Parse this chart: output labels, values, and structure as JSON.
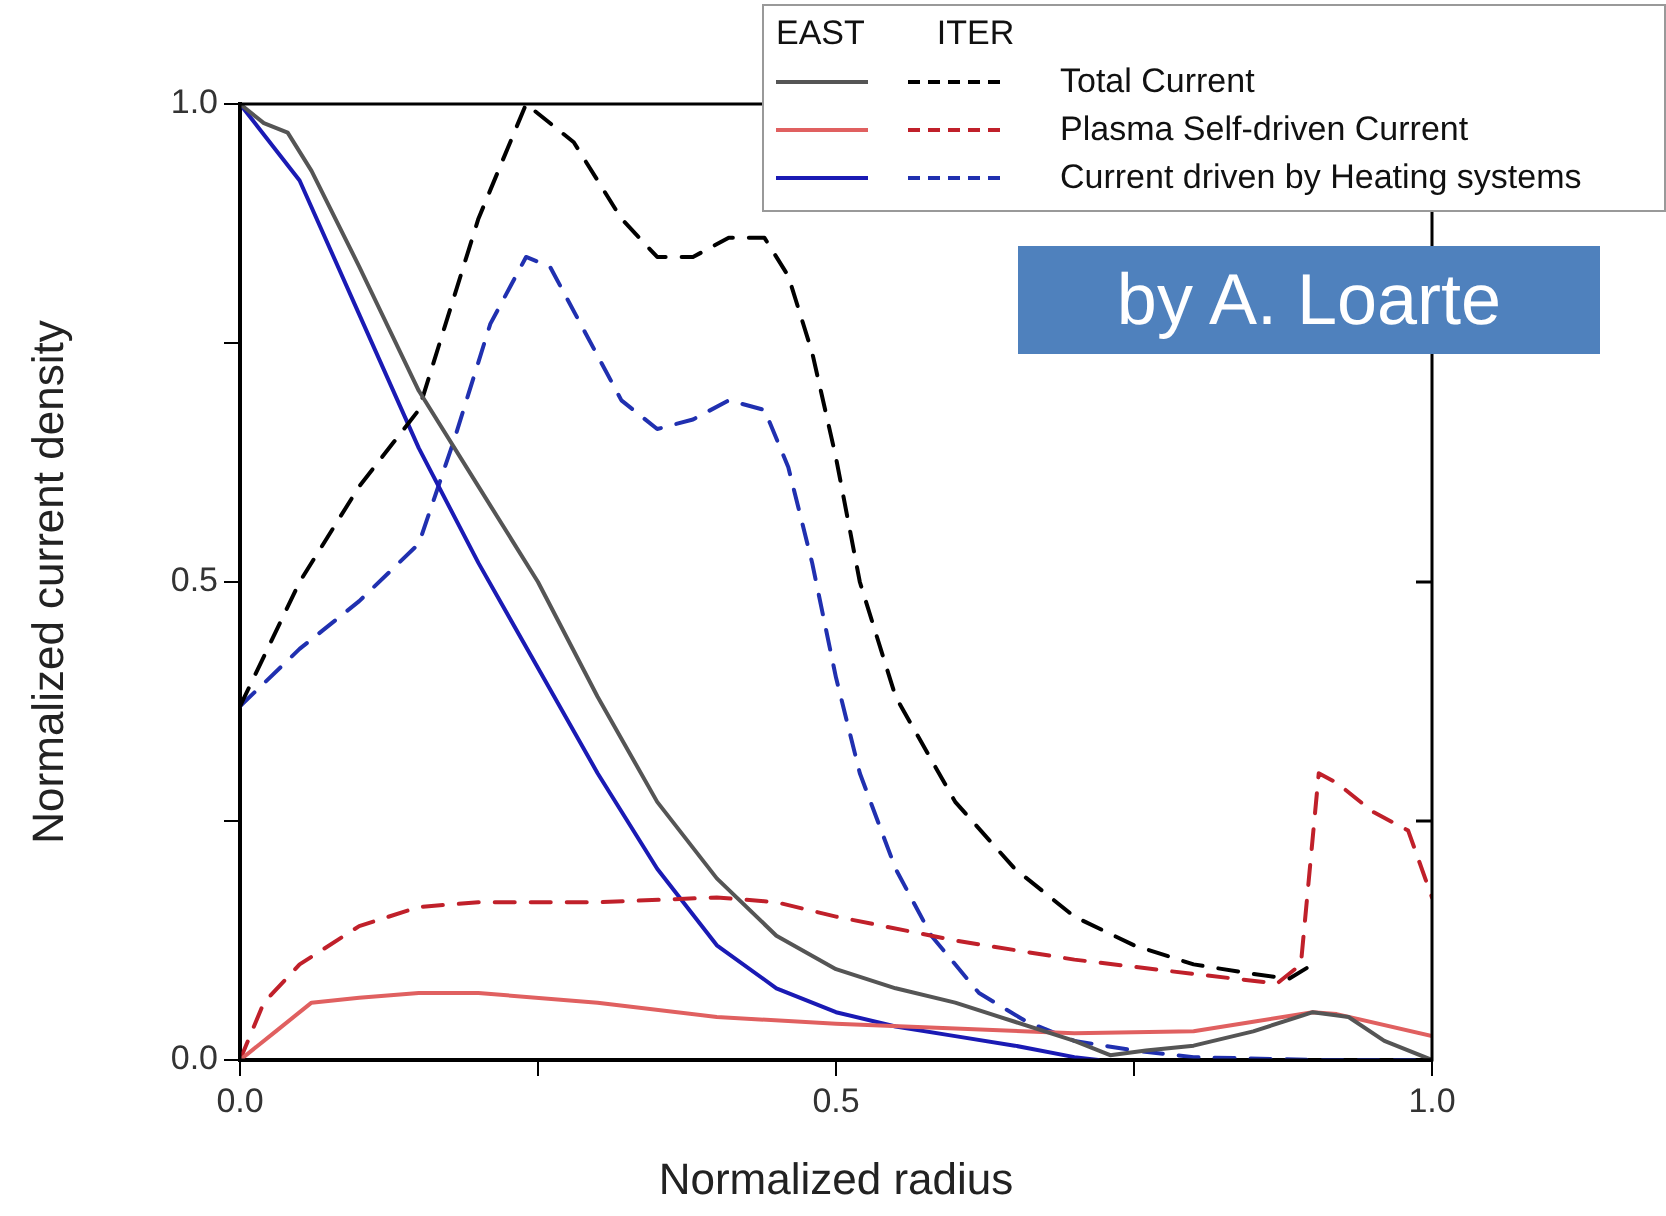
{
  "chart_data": {
    "type": "line",
    "xlabel": "Normalized radius",
    "ylabel": "Normalized current density",
    "annotations": [
      "EAST",
      "ITER",
      "by A. Loarte"
    ],
    "xlim": [
      0,
      1
    ],
    "xticks": [
      {
        "value": 0,
        "label": "0.0"
      },
      {
        "value": 0.25,
        "label": null
      },
      {
        "value": 0.5,
        "label": "0.5"
      },
      {
        "value": 0.75,
        "label": null
      },
      {
        "value": 1,
        "label": "1.0"
      }
    ],
    "ylim": [
      0,
      1
    ],
    "yticks": [
      {
        "value": 0,
        "label": "0.0"
      },
      {
        "value": 0.25,
        "label": null
      },
      {
        "value": 0.5,
        "label": "0.5"
      },
      {
        "value": 0.75,
        "label": null
      },
      {
        "value": 1,
        "label": "1.0"
      }
    ],
    "grid": false,
    "legend": "top right",
    "marker": "none",
    "series": [
      {
        "color": "#555555",
        "line_style": "solid",
        "x": [
          0,
          0.02,
          0.04,
          0.06,
          0.1,
          0.15,
          0.2,
          0.25,
          0.3,
          0.35,
          0.4,
          0.45,
          0.5,
          0.55,
          0.6,
          0.65,
          0.7,
          0.73,
          0.76,
          0.8,
          0.85,
          0.9,
          0.93,
          0.96,
          1
        ],
        "values": [
          1,
          0.98,
          0.97,
          0.93,
          0.83,
          0.7,
          0.6,
          0.5,
          0.38,
          0.27,
          0.19,
          0.13,
          0.095,
          0.075,
          0.06,
          0.04,
          0.02,
          0.005,
          0.01,
          0.015,
          0.03,
          0.05,
          0.045,
          0.02,
          0
        ]
      },
      {
        "name": "Total Current",
        "color": "#000000",
        "line_style": "dashed",
        "x": [
          0,
          0.05,
          0.1,
          0.15,
          0.2,
          0.24,
          0.28,
          0.32,
          0.35,
          0.38,
          0.41,
          0.44,
          0.46,
          0.48,
          0.5,
          0.52,
          0.55,
          0.6,
          0.65,
          0.7,
          0.75,
          0.8,
          0.85,
          0.88,
          0.9
        ],
        "values": [
          0.37,
          0.5,
          0.6,
          0.68,
          0.88,
          1,
          0.96,
          0.88,
          0.84,
          0.84,
          0.86,
          0.86,
          0.82,
          0.74,
          0.63,
          0.5,
          0.38,
          0.27,
          0.2,
          0.15,
          0.12,
          0.1,
          0.09,
          0.085,
          0.1
        ]
      },
      {
        "color": "#e06060",
        "line_style": "solid",
        "x": [
          0,
          0.03,
          0.06,
          0.1,
          0.15,
          0.2,
          0.3,
          0.4,
          0.5,
          0.6,
          0.7,
          0.8,
          0.85,
          0.9,
          0.92,
          1
        ],
        "values": [
          0,
          0.03,
          0.06,
          0.065,
          0.07,
          0.07,
          0.06,
          0.045,
          0.038,
          0.033,
          0.028,
          0.03,
          0.04,
          0.05,
          0.048,
          0.025
        ]
      },
      {
        "name": "Plasma Self-driven Current",
        "color": "#c0202a",
        "line_style": "dashed",
        "x": [
          0,
          0.02,
          0.05,
          0.1,
          0.15,
          0.2,
          0.3,
          0.4,
          0.45,
          0.5,
          0.6,
          0.7,
          0.8,
          0.87,
          0.89,
          0.905,
          0.92,
          0.95,
          0.98,
          1
        ],
        "values": [
          0,
          0.06,
          0.1,
          0.14,
          0.16,
          0.165,
          0.165,
          0.17,
          0.165,
          0.15,
          0.125,
          0.105,
          0.09,
          0.08,
          0.1,
          0.3,
          0.29,
          0.26,
          0.24,
          0.17
        ]
      },
      {
        "color": "#1a1ab4",
        "line_style": "solid",
        "x": [
          0,
          0.05,
          0.1,
          0.15,
          0.2,
          0.25,
          0.3,
          0.35,
          0.4,
          0.45,
          0.5,
          0.55,
          0.6,
          0.65,
          0.7,
          0.72
        ],
        "values": [
          1,
          0.92,
          0.78,
          0.64,
          0.52,
          0.41,
          0.3,
          0.2,
          0.12,
          0.075,
          0.05,
          0.035,
          0.025,
          0.015,
          0.003,
          0
        ]
      },
      {
        "name": "Current driven by Heating systems",
        "color": "#2030b0",
        "line_style": "dashed",
        "x": [
          0,
          0.05,
          0.1,
          0.15,
          0.18,
          0.21,
          0.24,
          0.26,
          0.29,
          0.32,
          0.35,
          0.38,
          0.41,
          0.44,
          0.46,
          0.48,
          0.5,
          0.52,
          0.55,
          0.58,
          0.62,
          0.66,
          0.7,
          0.75,
          0.8,
          0.9,
          1
        ],
        "values": [
          0.37,
          0.43,
          0.48,
          0.54,
          0.65,
          0.77,
          0.84,
          0.83,
          0.76,
          0.69,
          0.66,
          0.67,
          0.69,
          0.68,
          0.62,
          0.52,
          0.4,
          0.3,
          0.2,
          0.13,
          0.07,
          0.04,
          0.02,
          0.01,
          0.003,
          0,
          0
        ]
      }
    ]
  }
}
